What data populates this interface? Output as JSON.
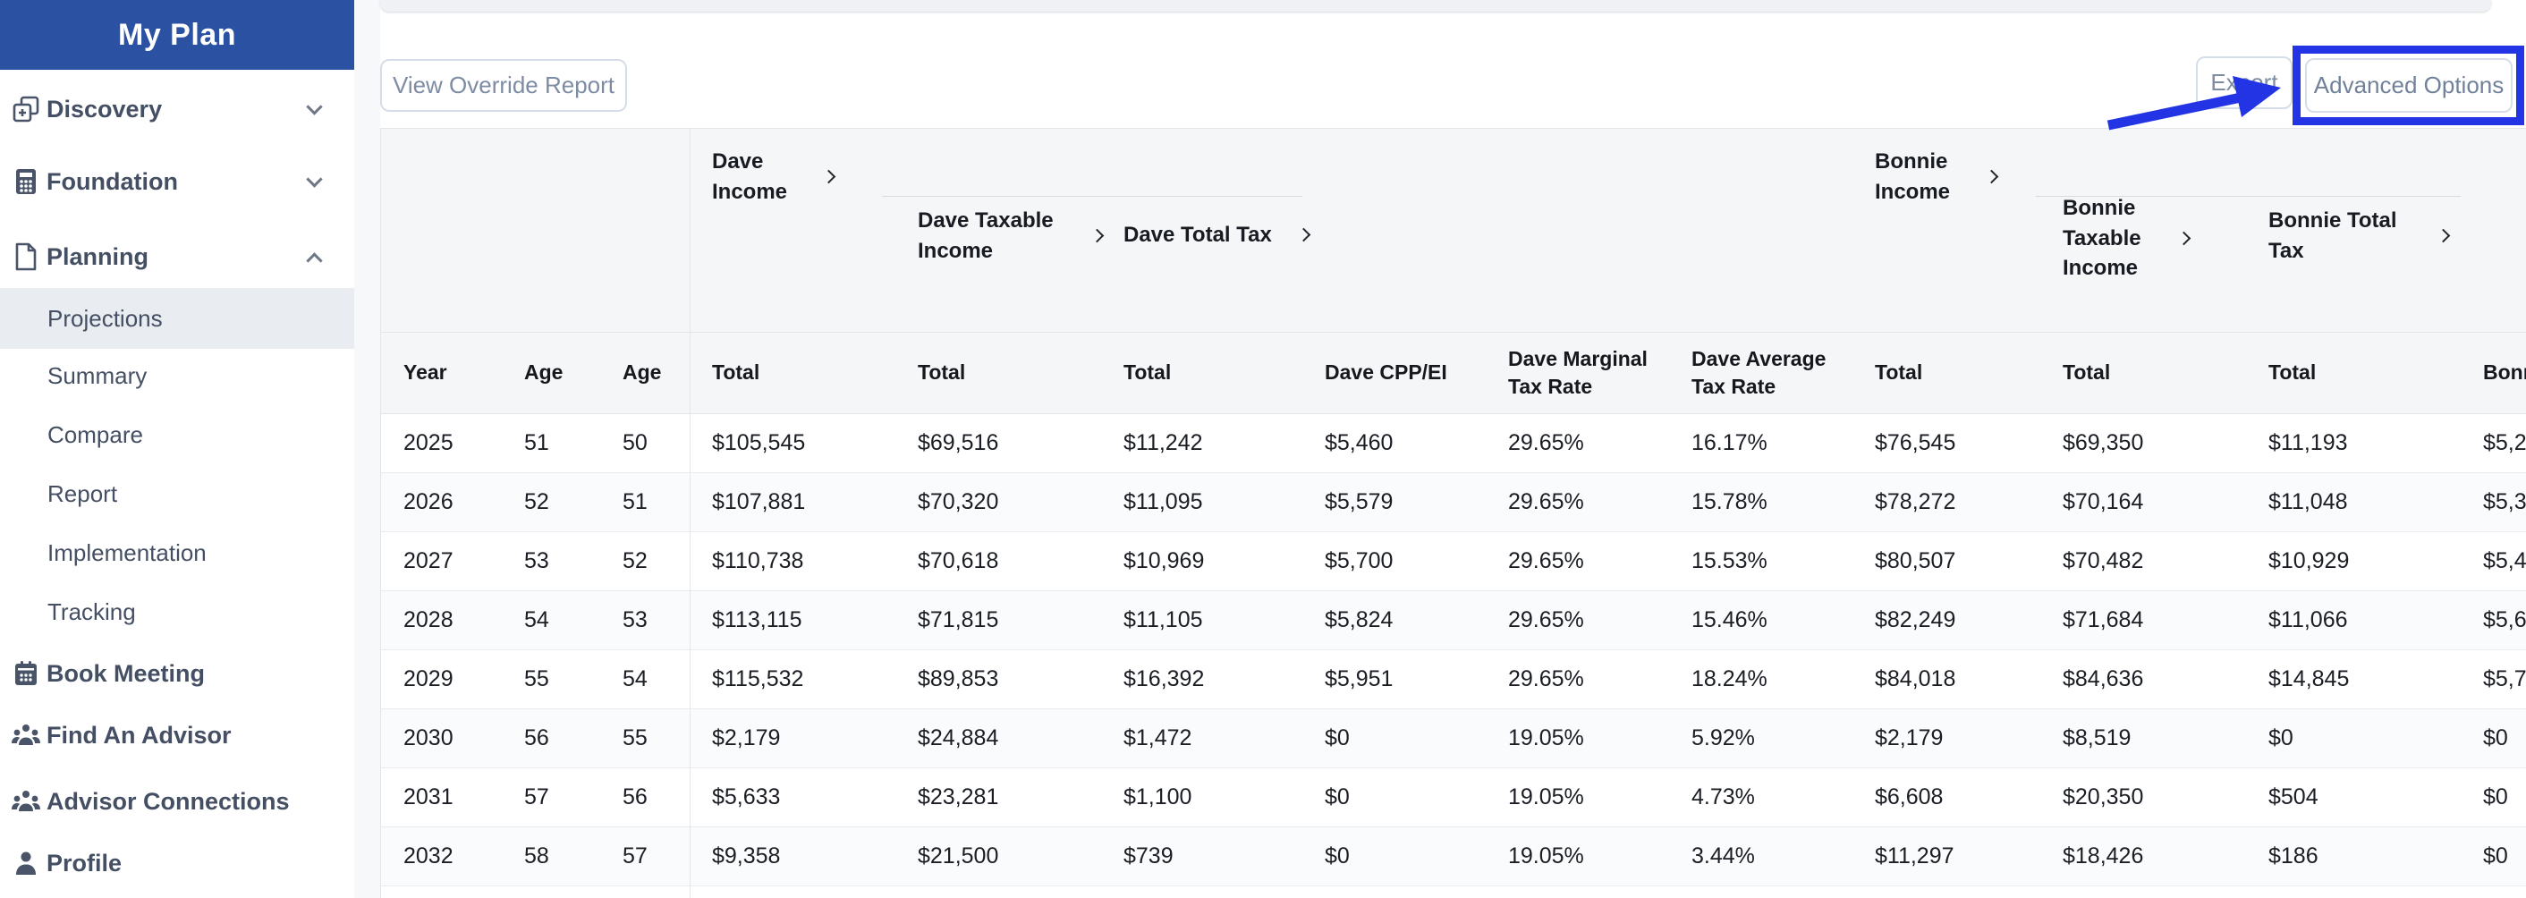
{
  "app": {
    "sidebar_blue": "#2b51a3",
    "annotation_blue": "#2334e4"
  },
  "sidebar": {
    "title": "My Plan",
    "items": [
      {
        "label": "Discovery",
        "icon": "discovery",
        "state": "collapsed"
      },
      {
        "label": "Foundation",
        "icon": "calculator",
        "state": "collapsed"
      },
      {
        "label": "Planning",
        "icon": "document",
        "state": "expanded"
      },
      {
        "label": "Projections",
        "active": true
      },
      {
        "label": "Summary"
      },
      {
        "label": "Compare"
      },
      {
        "label": "Report"
      },
      {
        "label": "Implementation"
      },
      {
        "label": "Tracking"
      },
      {
        "label": "Book Meeting",
        "icon": "calendar"
      },
      {
        "label": "Find An Advisor",
        "icon": "people"
      },
      {
        "label": "Advisor Connections",
        "icon": "people"
      },
      {
        "label": "Profile",
        "icon": "person"
      }
    ]
  },
  "toolbar": {
    "view_override_report": "View Override Report",
    "export": "Export",
    "advanced_options": "Advanced Options"
  },
  "annotation": {
    "target": "Advanced Options",
    "color": "#2334e4"
  },
  "table": {
    "groups": [
      {
        "label": "Dave Income"
      },
      {
        "label": "Dave Taxable Income"
      },
      {
        "label": "Dave Total Tax"
      },
      {
        "label": "Bonnie Income"
      },
      {
        "label": "Bonnie Taxable Income"
      },
      {
        "label": "Bonnie Total Tax"
      }
    ],
    "columns": [
      "Year",
      "Age",
      "Age",
      "Total",
      "Total",
      "Total",
      "Dave CPP/EI",
      "Dave Marginal Tax Rate",
      "Dave Average Tax Rate",
      "Total",
      "Total",
      "Total",
      "Bonn"
    ],
    "rows": [
      [
        "2025",
        "51",
        "50",
        "$105,545",
        "$69,516",
        "$11,242",
        "$5,460",
        "29.65%",
        "16.17%",
        "$76,545",
        "$69,350",
        "$11,193",
        "$5,2"
      ],
      [
        "2026",
        "52",
        "51",
        "$107,881",
        "$70,320",
        "$11,095",
        "$5,579",
        "29.65%",
        "15.78%",
        "$78,272",
        "$70,164",
        "$11,048",
        "$5,3"
      ],
      [
        "2027",
        "53",
        "52",
        "$110,738",
        "$70,618",
        "$10,969",
        "$5,700",
        "29.65%",
        "15.53%",
        "$80,507",
        "$70,482",
        "$10,929",
        "$5,4"
      ],
      [
        "2028",
        "54",
        "53",
        "$113,115",
        "$71,815",
        "$11,105",
        "$5,824",
        "29.65%",
        "15.46%",
        "$82,249",
        "$71,684",
        "$11,066",
        "$5,6"
      ],
      [
        "2029",
        "55",
        "54",
        "$115,532",
        "$89,853",
        "$16,392",
        "$5,951",
        "29.65%",
        "18.24%",
        "$84,018",
        "$84,636",
        "$14,845",
        "$5,7"
      ],
      [
        "2030",
        "56",
        "55",
        "$2,179",
        "$24,884",
        "$1,472",
        "$0",
        "19.05%",
        "5.92%",
        "$2,179",
        "$8,519",
        "$0",
        "$0"
      ],
      [
        "2031",
        "57",
        "56",
        "$5,633",
        "$23,281",
        "$1,100",
        "$0",
        "19.05%",
        "4.73%",
        "$6,608",
        "$20,350",
        "$504",
        "$0"
      ],
      [
        "2032",
        "58",
        "57",
        "$9,358",
        "$21,500",
        "$739",
        "$0",
        "19.05%",
        "3.44%",
        "$11,297",
        "$18,426",
        "$186",
        "$0"
      ]
    ]
  }
}
